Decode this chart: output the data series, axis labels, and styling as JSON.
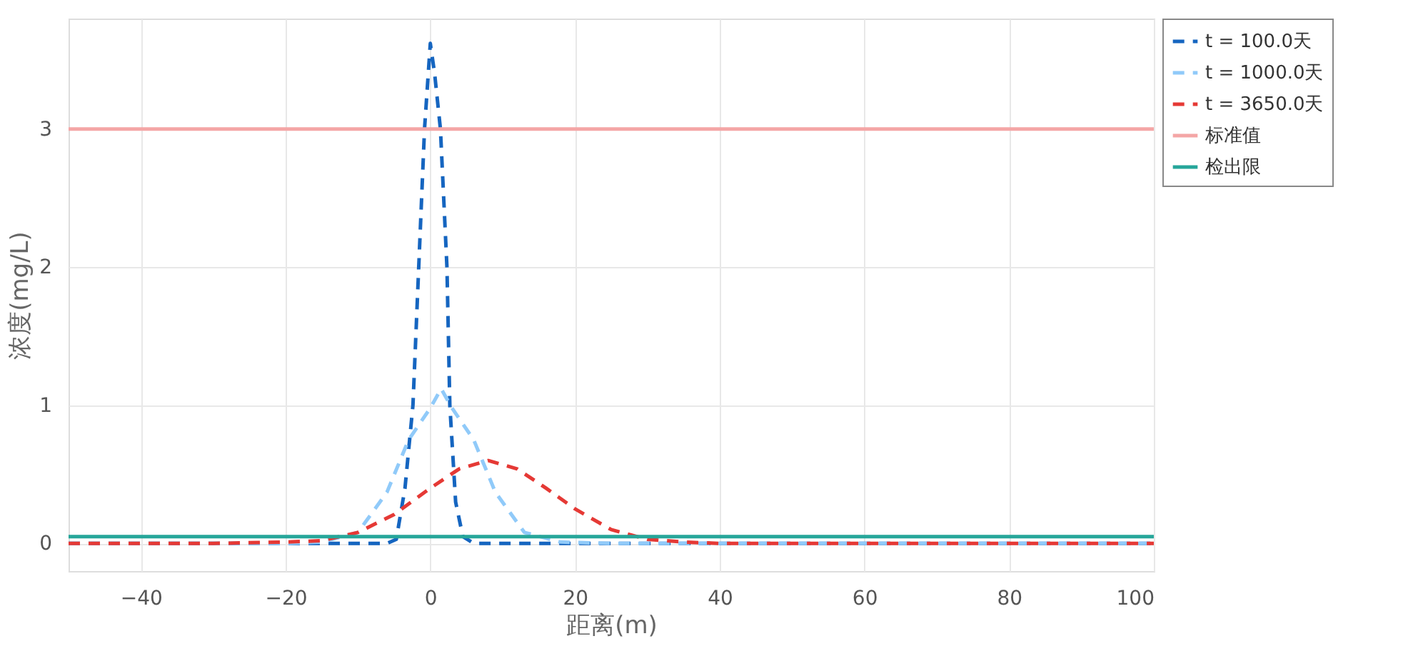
{
  "chart_data": {
    "type": "line",
    "xlabel": "距离(m)",
    "ylabel": "浓度(mg/L)",
    "xlim": [
      -50,
      100
    ],
    "xticks": [
      -40,
      -20,
      0,
      20,
      40,
      60,
      80,
      100
    ],
    "ylim": [
      -0.2,
      3.8
    ],
    "yticks": [
      0,
      1,
      2,
      3
    ],
    "grid": true,
    "legend": "top right",
    "line_style": "dashed",
    "marker": "none",
    "series": [
      {
        "name": "t = 100.0天",
        "color": "#1565c0",
        "x": [
          -50,
          -6,
          -4.7,
          -3.5,
          -2.4,
          -1.6,
          -0.8,
          0,
          0.6,
          1.4,
          2.3,
          2.7,
          3.5,
          4.5,
          6,
          100
        ],
        "values": [
          0,
          0,
          0.03,
          0.4,
          1,
          2,
          3,
          3.62,
          3.4,
          3,
          2,
          1,
          0.3,
          0.05,
          0,
          0
        ]
      },
      {
        "name": "t = 1000.0天",
        "color": "#90caf9",
        "x": [
          -50,
          -20,
          -15,
          -10,
          -6,
          -3,
          0,
          1.5,
          3,
          6,
          9,
          13,
          18,
          25,
          100
        ],
        "values": [
          0,
          0,
          0.01,
          0.08,
          0.37,
          0.75,
          0.98,
          1.12,
          0.98,
          0.75,
          0.37,
          0.08,
          0.01,
          0,
          0
        ]
      },
      {
        "name": "t = 3650.0天",
        "color": "#e53935",
        "x": [
          -50,
          -30,
          -20,
          -15,
          -10,
          -5,
          0,
          4,
          8,
          12,
          16,
          20,
          25,
          30,
          35,
          40,
          100
        ],
        "values": [
          0,
          0,
          0.01,
          0.02,
          0.08,
          0.21,
          0.4,
          0.54,
          0.6,
          0.54,
          0.4,
          0.25,
          0.1,
          0.03,
          0.01,
          0,
          0
        ]
      }
    ],
    "ref_lines": [
      {
        "axis": "y",
        "value": 3,
        "label": "标准值",
        "color": "#f4a6a6",
        "line_style": "solid"
      },
      {
        "axis": "y",
        "value": 0.05,
        "label": "检出限",
        "color": "#26a69a",
        "line_style": "solid"
      }
    ]
  }
}
